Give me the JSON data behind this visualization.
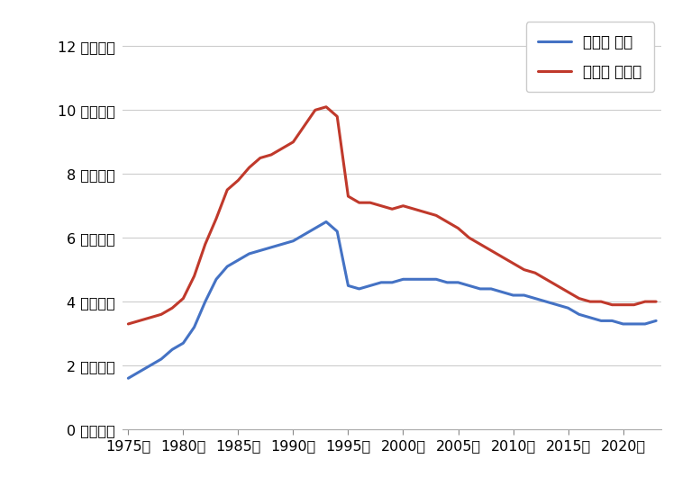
{
  "years_residential": [
    1975,
    1976,
    1977,
    1978,
    1979,
    1980,
    1981,
    1982,
    1983,
    1984,
    1985,
    1986,
    1987,
    1988,
    1989,
    1990,
    1991,
    1992,
    1993,
    1994,
    1995,
    1996,
    1997,
    1998,
    1999,
    2000,
    2001,
    2002,
    2003,
    2004,
    2005,
    2006,
    2007,
    2008,
    2009,
    2010,
    2011,
    2012,
    2013,
    2014,
    2015,
    2016,
    2017,
    2018,
    2019,
    2020,
    2021,
    2022,
    2023
  ],
  "values_residential": [
    1.6,
    1.8,
    2.0,
    2.2,
    2.5,
    2.7,
    3.2,
    4.0,
    4.7,
    5.1,
    5.3,
    5.5,
    5.6,
    5.7,
    5.8,
    5.9,
    6.1,
    6.3,
    6.5,
    6.2,
    4.5,
    4.4,
    4.5,
    4.6,
    4.6,
    4.7,
    4.7,
    4.7,
    4.7,
    4.6,
    4.6,
    4.5,
    4.4,
    4.4,
    4.3,
    4.2,
    4.2,
    4.1,
    4.0,
    3.9,
    3.8,
    3.6,
    3.5,
    3.4,
    3.4,
    3.3,
    3.3,
    3.3,
    3.4
  ],
  "years_all": [
    1975,
    1976,
    1977,
    1978,
    1979,
    1980,
    1981,
    1982,
    1983,
    1984,
    1985,
    1986,
    1987,
    1988,
    1989,
    1990,
    1991,
    1992,
    1993,
    1994,
    1995,
    1996,
    1997,
    1998,
    1999,
    2000,
    2001,
    2002,
    2003,
    2004,
    2005,
    2006,
    2007,
    2008,
    2009,
    2010,
    2011,
    2012,
    2013,
    2014,
    2015,
    2016,
    2017,
    2018,
    2019,
    2020,
    2021,
    2022,
    2023
  ],
  "values_all": [
    3.3,
    3.4,
    3.5,
    3.6,
    3.8,
    4.1,
    4.8,
    5.8,
    6.6,
    7.5,
    7.8,
    8.2,
    8.5,
    8.6,
    8.8,
    9.0,
    9.5,
    10.0,
    10.1,
    9.8,
    7.3,
    7.1,
    7.1,
    7.0,
    6.9,
    7.0,
    6.9,
    6.8,
    6.7,
    6.5,
    6.3,
    6.0,
    5.8,
    5.6,
    5.4,
    5.2,
    5.0,
    4.9,
    4.7,
    4.5,
    4.3,
    4.1,
    4.0,
    4.0,
    3.9,
    3.9,
    3.9,
    4.0,
    4.0
  ],
  "color_residential": "#4472c4",
  "color_all": "#c0392b",
  "label_residential": "島根県 住宅",
  "label_all": "島根県 全用途",
  "ytick_values": [
    0,
    2,
    4,
    6,
    8,
    10,
    12
  ],
  "ytick_labels": [
    "0 万円／㎡",
    "2 万円／㎡",
    "4 万円／㎡",
    "6 万円／㎡",
    "8 万円／㎡",
    "10 万円／㎡",
    "12 万円／㎡"
  ],
  "xlim": [
    1974.5,
    2023.5
  ],
  "ylim": [
    0,
    13.0
  ],
  "xtick_years": [
    1975,
    1980,
    1985,
    1990,
    1995,
    2000,
    2005,
    2010,
    2015,
    2020
  ],
  "background_color": "#ffffff",
  "grid_color": "#cccccc",
  "line_width": 2.2
}
